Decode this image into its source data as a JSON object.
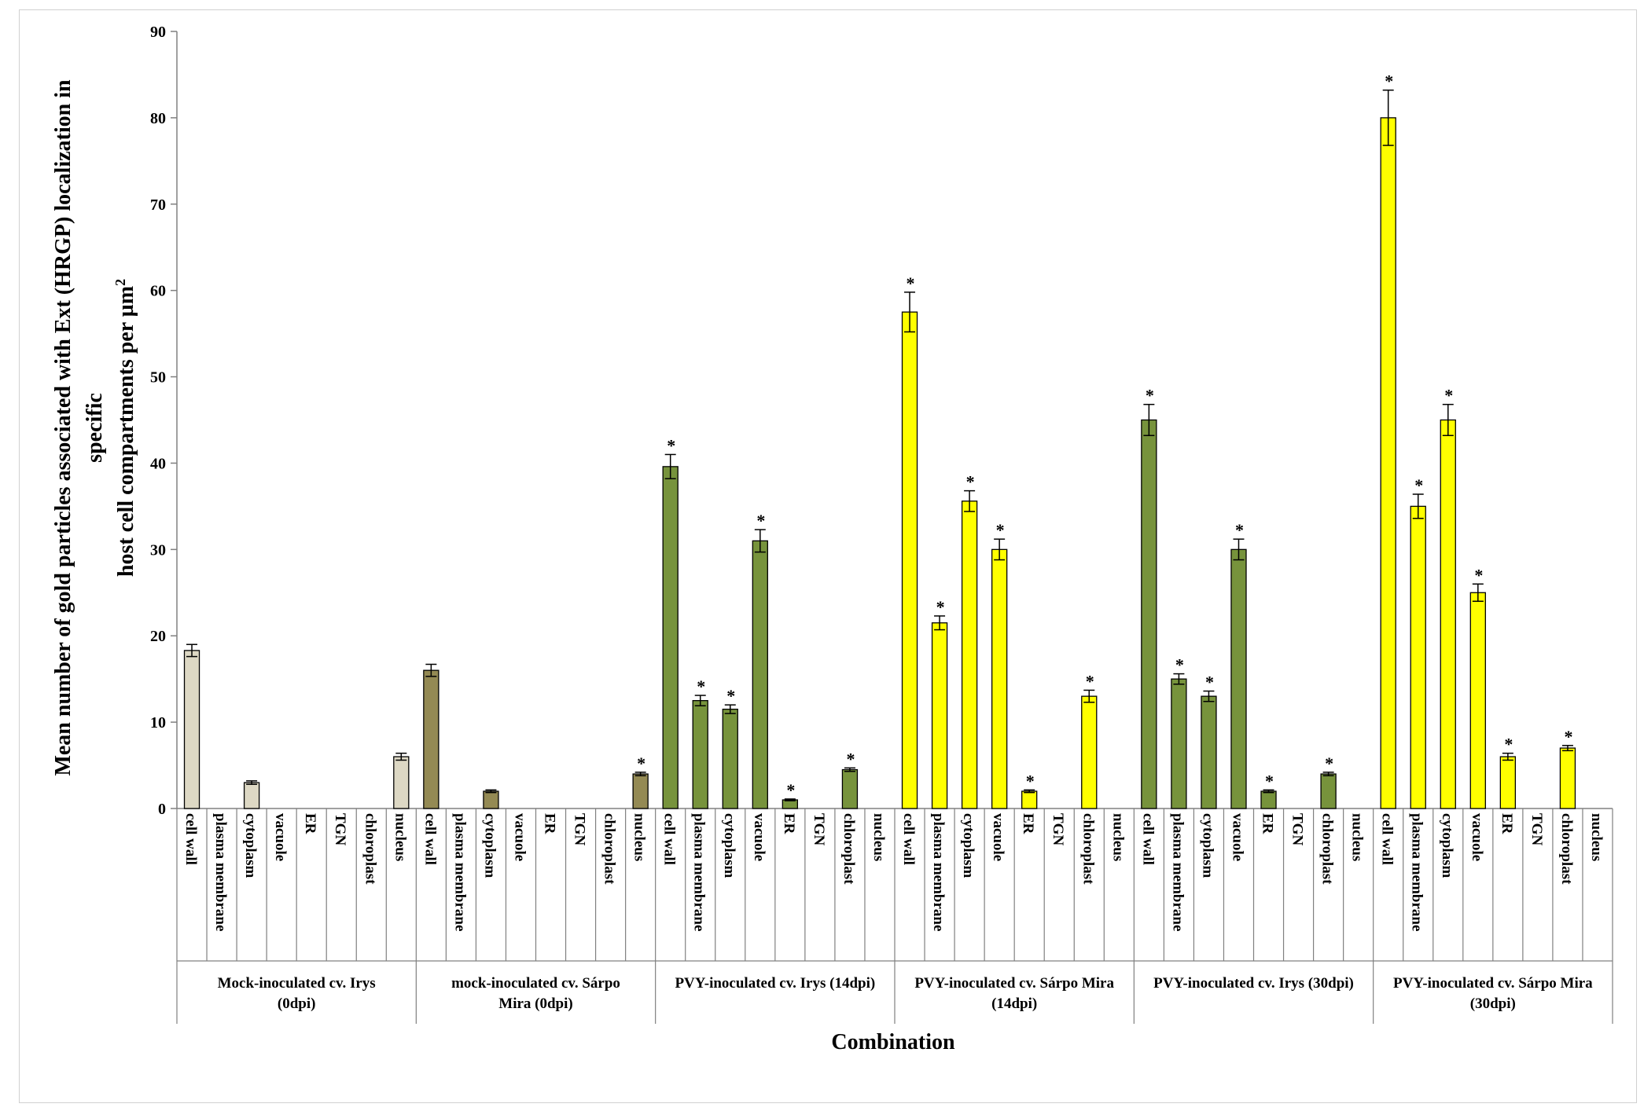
{
  "chart_data": {
    "type": "bar",
    "title": "",
    "xlabel": "Combination",
    "ylabel_lines": [
      "Mean number of gold particles associated with Ext (HRGP) localization in",
      "specific",
      "host cell compartments per µm"
    ],
    "ylabel_superscript": "2",
    "ylim": [
      0,
      90
    ],
    "yticks": [
      "0",
      "10",
      "20",
      "30",
      "40",
      "50",
      "60",
      "70",
      "80",
      "90"
    ],
    "categories": [
      "cell wall",
      "plasma membrane",
      "cytoplasm",
      "vacuole",
      "ER",
      "TGN",
      "chloroplast",
      "nucleus"
    ],
    "significance_marker": "*",
    "groups": [
      {
        "label_lines": [
          "Mock-inoculated cv. Irys",
          "(0dpi)"
        ],
        "color": "#ddd8c4",
        "values": [
          18.3,
          0,
          3,
          0,
          0,
          0,
          0,
          6
        ],
        "errors": [
          0.7,
          0,
          0.2,
          0,
          0,
          0,
          0,
          0.4
        ],
        "significant": [
          false,
          false,
          false,
          false,
          false,
          false,
          false,
          false
        ]
      },
      {
        "label_lines": [
          "mock-inoculated cv. Sárpo",
          "Mira (0dpi)"
        ],
        "color": "#948a54",
        "values": [
          16,
          0,
          2,
          0,
          0,
          0,
          0,
          4
        ],
        "errors": [
          0.7,
          0,
          0.15,
          0,
          0,
          0,
          0,
          0.2
        ],
        "significant": [
          false,
          false,
          false,
          false,
          false,
          false,
          false,
          true
        ]
      },
      {
        "label_lines": [
          "PVY-inoculated cv. Irys (14dpi)"
        ],
        "color": "#77933c",
        "values": [
          39.6,
          12.5,
          11.5,
          31,
          1,
          0,
          4.5,
          0
        ],
        "errors": [
          1.4,
          0.6,
          0.5,
          1.3,
          0.1,
          0,
          0.2,
          0
        ],
        "significant": [
          true,
          true,
          true,
          true,
          true,
          false,
          true,
          false
        ]
      },
      {
        "label_lines": [
          "PVY-inoculated cv. Sárpo Mira",
          "(14dpi)"
        ],
        "color": "#ffff00",
        "values": [
          57.5,
          21.5,
          35.6,
          30,
          2,
          0,
          13,
          0
        ],
        "errors": [
          2.3,
          0.8,
          1.2,
          1.2,
          0.15,
          0,
          0.7,
          0
        ],
        "significant": [
          true,
          true,
          true,
          true,
          true,
          false,
          true,
          false
        ]
      },
      {
        "label_lines": [
          "PVY-inoculated cv. Irys (30dpi)"
        ],
        "color": "#77933c",
        "values": [
          45,
          15,
          13,
          30,
          2,
          0,
          4,
          0
        ],
        "errors": [
          1.8,
          0.6,
          0.6,
          1.2,
          0.15,
          0,
          0.2,
          0
        ],
        "significant": [
          true,
          true,
          true,
          true,
          true,
          false,
          true,
          false
        ]
      },
      {
        "label_lines": [
          "PVY-inoculated cv. Sárpo Mira",
          "(30dpi)"
        ],
        "color": "#ffff00",
        "values": [
          80,
          35,
          45,
          25,
          6,
          0,
          7,
          0
        ],
        "errors": [
          3.2,
          1.4,
          1.8,
          1,
          0.4,
          0,
          0.3,
          0
        ],
        "significant": [
          true,
          true,
          true,
          true,
          true,
          false,
          true,
          false
        ]
      }
    ]
  }
}
